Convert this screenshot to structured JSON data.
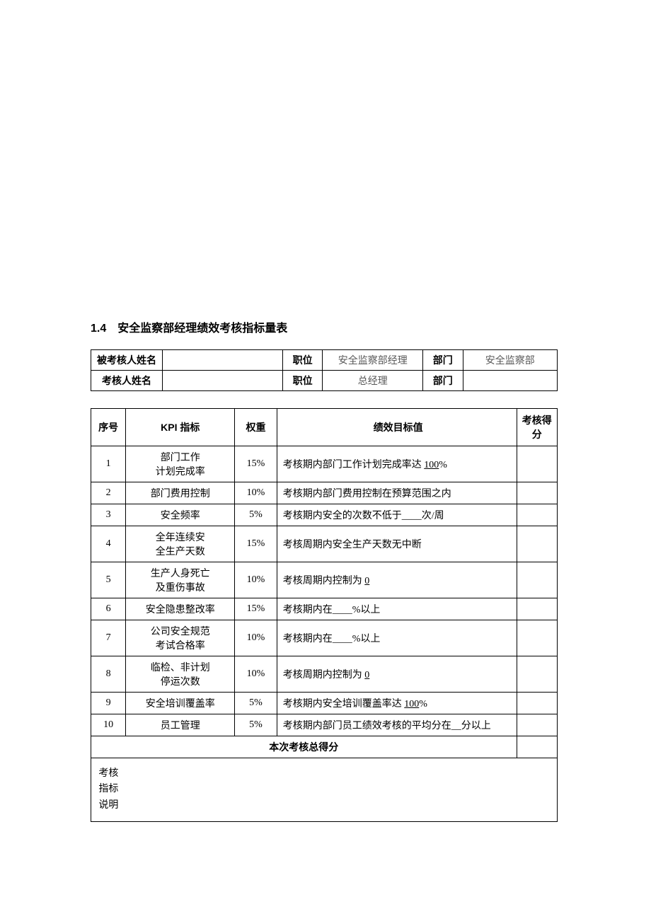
{
  "section": {
    "number": "1.4",
    "title": "安全监察部经理绩效考核指标量表"
  },
  "header_table": {
    "rows": [
      {
        "label": "被考核人姓名",
        "name": "",
        "position_label": "职位",
        "position": "安全监察部经理",
        "dept_label": "部门",
        "dept": "安全监察部"
      },
      {
        "label": "考核人姓名",
        "name": "",
        "position_label": "职位",
        "position": "总经理",
        "dept_label": "部门",
        "dept": ""
      }
    ]
  },
  "kpi_table": {
    "headers": {
      "seq": "序号",
      "kpi": "KPI 指标",
      "weight": "权重",
      "target": "绩效目标值",
      "score": "考核得分"
    },
    "rows": [
      {
        "seq": "1",
        "kpi": "部门工作\n计划完成率",
        "weight": "15%",
        "target_pre": "考核期内部门工作计划完成率达 ",
        "target_u": "100",
        "target_post": "%",
        "score": ""
      },
      {
        "seq": "2",
        "kpi": "部门费用控制",
        "weight": "10%",
        "target_pre": "考核期内部门费用控制在预算范围之内",
        "target_u": "",
        "target_post": "",
        "score": ""
      },
      {
        "seq": "3",
        "kpi": "安全频率",
        "weight": "5%",
        "target_pre": "考核期内安全的次数不低于____次/周",
        "target_u": "",
        "target_post": "",
        "score": ""
      },
      {
        "seq": "4",
        "kpi": "全年连续安\n全生产天数",
        "weight": "15%",
        "target_pre": "考核周期内安全生产天数无中断",
        "target_u": "",
        "target_post": "",
        "score": ""
      },
      {
        "seq": "5",
        "kpi": "生产人身死亡\n及重伤事故",
        "weight": "10%",
        "target_pre": "考核周期内控制为 ",
        "target_u": "0",
        "target_post": "",
        "score": ""
      },
      {
        "seq": "6",
        "kpi": "安全隐患整改率",
        "weight": "15%",
        "target_pre": "考核期内在____%以上",
        "target_u": "",
        "target_post": "",
        "score": ""
      },
      {
        "seq": "7",
        "kpi": "公司安全规范\n考试合格率",
        "weight": "10%",
        "target_pre": "考核期内在____%以上",
        "target_u": "",
        "target_post": "",
        "score": ""
      },
      {
        "seq": "8",
        "kpi": "临检、非计划\n停运次数",
        "weight": "10%",
        "target_pre": "考核周期内控制为 ",
        "target_u": "0",
        "target_post": "",
        "score": ""
      },
      {
        "seq": "9",
        "kpi": "安全培训覆盖率",
        "weight": "5%",
        "target_pre": "考核期内安全培训覆盖率达 ",
        "target_u": "100",
        "target_post": "%",
        "score": ""
      },
      {
        "seq": "10",
        "kpi": "员工管理",
        "weight": "5%",
        "target_pre": "考核期内部门员工绩效考核的平均分在__分以上",
        "target_u": "",
        "target_post": "",
        "score": ""
      }
    ],
    "total_label": "本次考核总得分",
    "total_score": "",
    "explain_label": "考核\n指标\n说明",
    "explain_content": ""
  },
  "style": {
    "background_color": "#ffffff",
    "border_color": "#000000",
    "text_color": "#000000",
    "gray_text_color": "#595959",
    "title_fontsize": 16,
    "body_fontsize": 14,
    "font_family_heading": "SimHei",
    "font_family_body": "SimSun"
  }
}
